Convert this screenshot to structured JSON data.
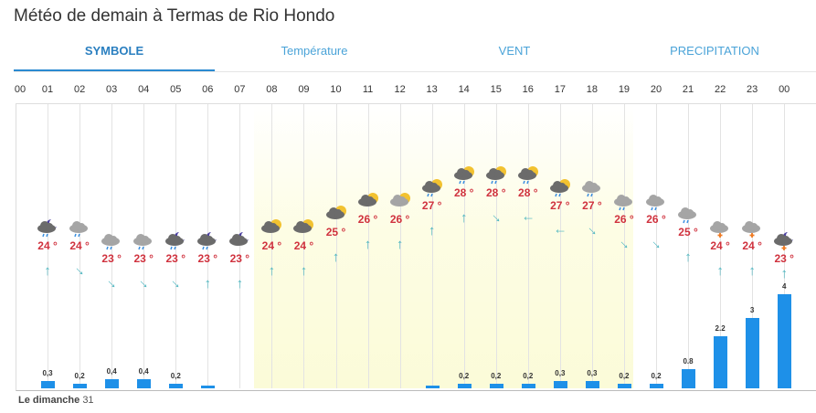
{
  "title": "Météo de demain à Termas de Rio Hondo",
  "tabs": [
    {
      "label": "SYMBOLE",
      "active": true
    },
    {
      "label": "Température"
    },
    {
      "label": "VENT"
    },
    {
      "label": "PRECIPITATION"
    }
  ],
  "hours": [
    "00",
    "01",
    "02",
    "03",
    "04",
    "05",
    "06",
    "07",
    "08",
    "09",
    "10",
    "11",
    "12",
    "13",
    "14",
    "15",
    "16",
    "17",
    "18",
    "19",
    "20",
    "21",
    "22",
    "23",
    "00"
  ],
  "temperatures": [
    24,
    24,
    23,
    23,
    23,
    23,
    23,
    24,
    24,
    25,
    26,
    26,
    27,
    28,
    28,
    28,
    27,
    27,
    26,
    26,
    25,
    24,
    24,
    23
  ],
  "temp_unit": "°",
  "weather_icons": [
    "night-cloud-rain",
    "cloud-rain",
    "cloud-rain",
    "cloud-rain",
    "night-cloud-rain",
    "night-cloud-rain",
    "night-cloud",
    "sun-cloud",
    "sun-cloud",
    "sun-cloud",
    "sun-cloud",
    "sun-light-cloud",
    "sun-cloud-rain",
    "sun-cloud-rain",
    "sun-cloud-rain",
    "sun-cloud-rain",
    "sun-cloud-rain",
    "cloud-rain",
    "cloud-rain",
    "cloud-rain",
    "cloud-rain",
    "cloud-storm",
    "cloud-storm",
    "night-cloud-storm"
  ],
  "wind_direction_deg": [
    0,
    135,
    135,
    135,
    135,
    0,
    0,
    0,
    0,
    0,
    0,
    0,
    0,
    0,
    135,
    270,
    270,
    135,
    135,
    135,
    0,
    0,
    0,
    0
  ],
  "precipitation": [
    0.3,
    0.2,
    0.4,
    0.4,
    0.2,
    0.1,
    0,
    0,
    0,
    0,
    0,
    0,
    0.1,
    0.2,
    0.2,
    0.2,
    0.3,
    0.3,
    0.2,
    0.2,
    0.8,
    2.2,
    3,
    4
  ],
  "precipitation_labels": [
    "0,3",
    "0,2",
    "0,4",
    "0,4",
    "0,2",
    "",
    "",
    "",
    "",
    "",
    "",
    "",
    "",
    "0,2",
    "0,2",
    "0,2",
    "0,3",
    "0,3",
    "0,2",
    "0,2",
    "0.8",
    "2.2",
    "3",
    "4"
  ],
  "footer": {
    "day": "Le dimanche",
    "date": "31"
  },
  "colors": {
    "accent": "#2a8ad1",
    "temp": "#d0323e",
    "bar": "#1e90e8",
    "wind": "#4fb6c0"
  }
}
